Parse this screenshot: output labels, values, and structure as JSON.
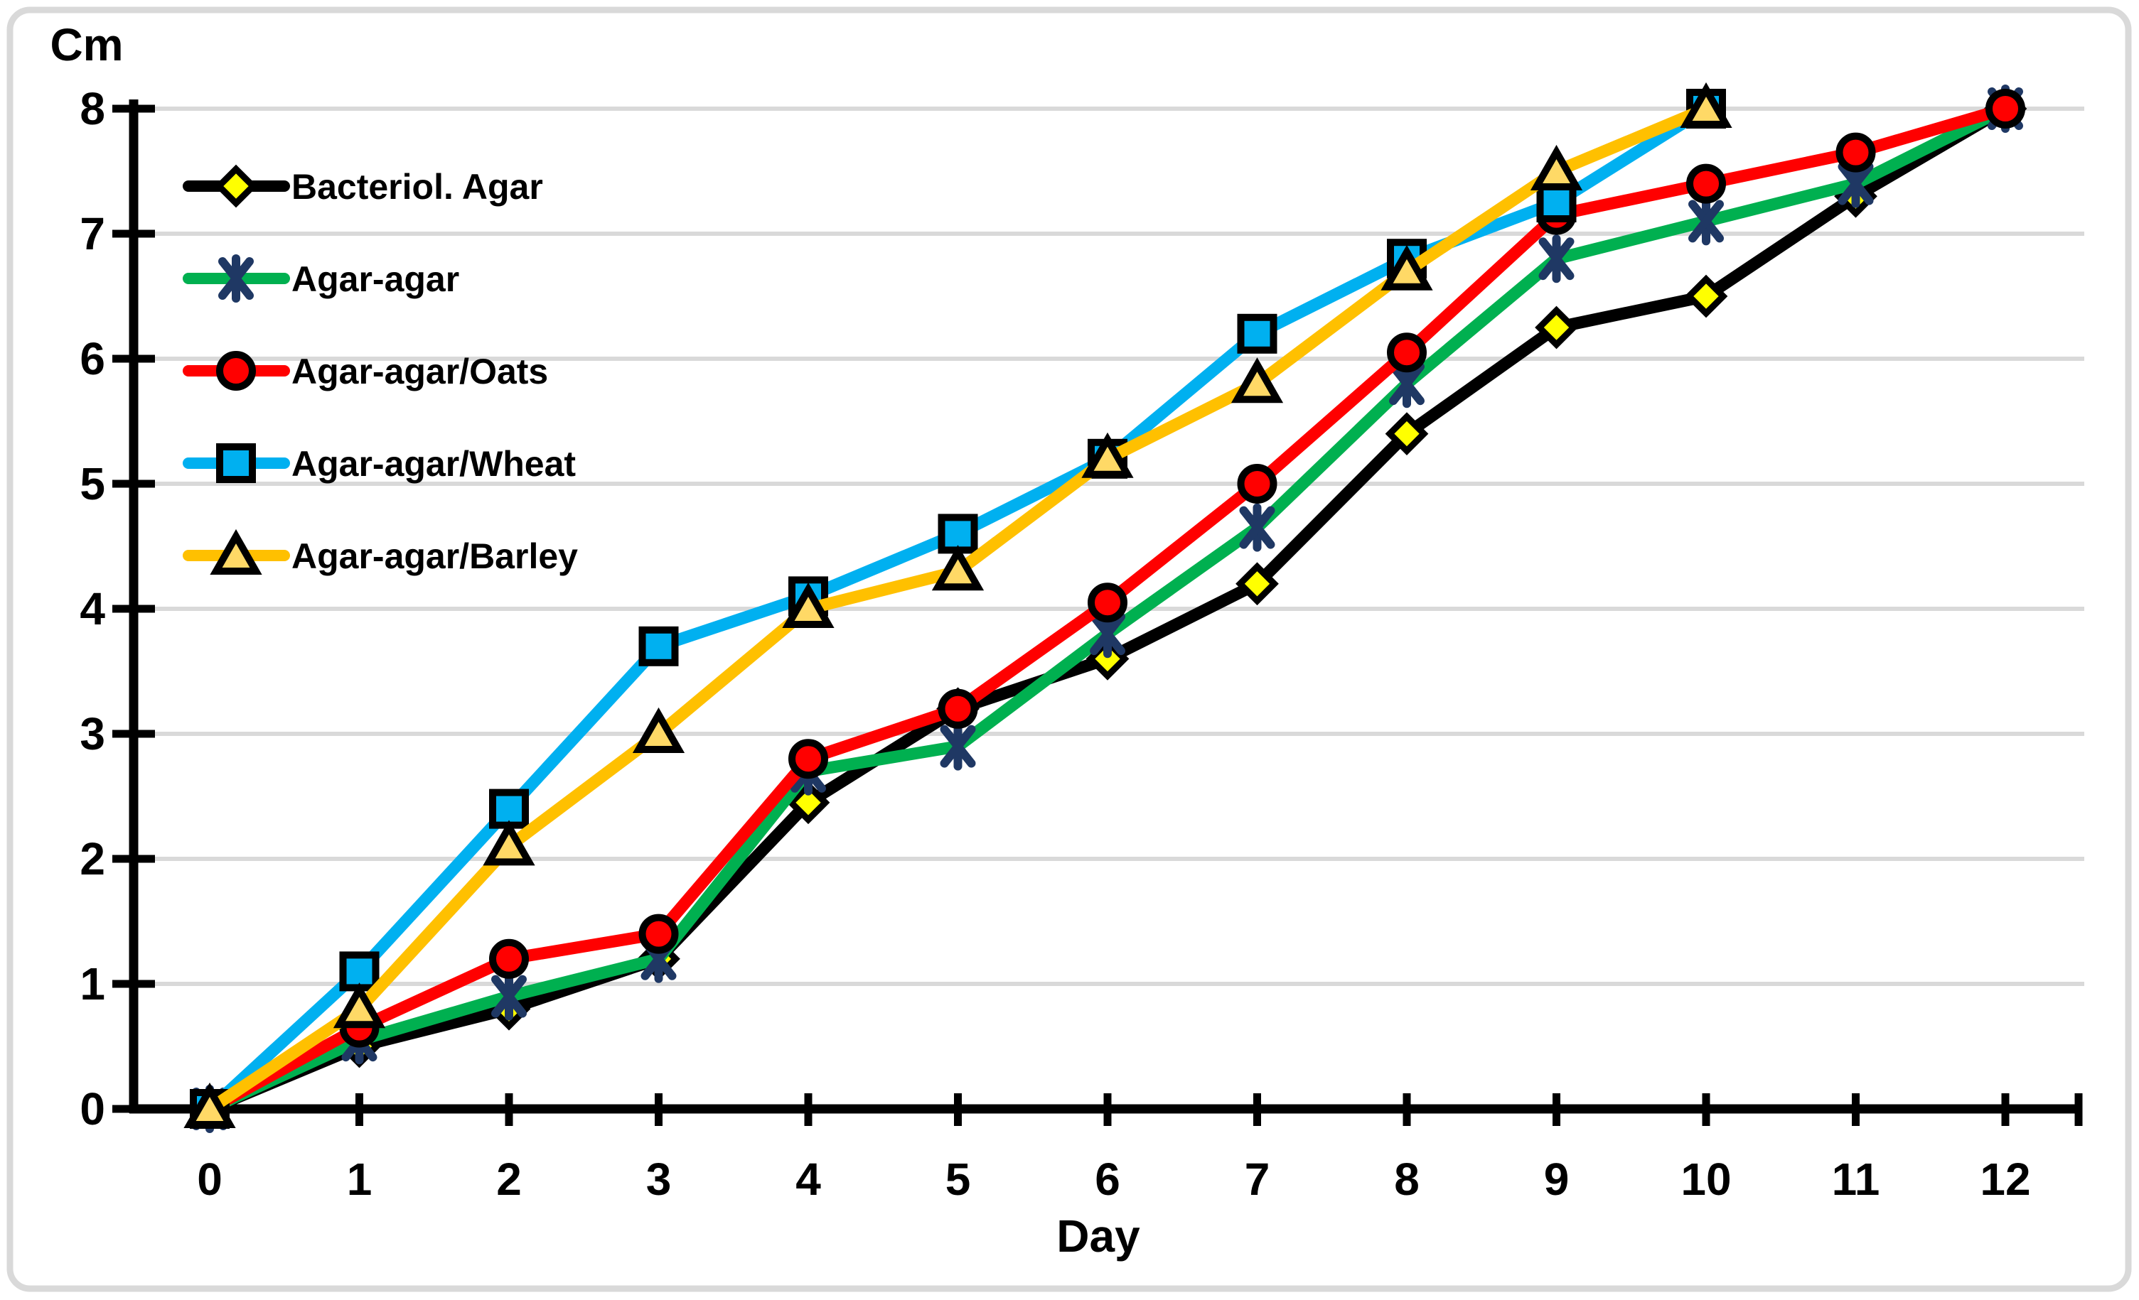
{
  "figure": {
    "background": "#FFFFFF",
    "border_color": "#D9D9D9"
  },
  "chart_data": {
    "type": "line",
    "title": "",
    "xlabel": "Day",
    "ylabel": "Cm",
    "x": [
      0,
      1,
      2,
      3,
      4,
      5,
      6,
      7,
      8,
      9,
      10,
      11,
      12
    ],
    "x_tick_labels": [
      "0",
      "1",
      "2",
      "3",
      "4",
      "5",
      "6",
      "7",
      "8",
      "9",
      "10",
      "11",
      "12"
    ],
    "y_tick_labels": [
      "0",
      "1",
      "2",
      "3",
      "4",
      "5",
      "6",
      "7",
      "8"
    ],
    "xlim": [
      0,
      12
    ],
    "ylim": [
      0,
      8
    ],
    "grid": "horizontal-only",
    "gridline_color": "#D9D9D9",
    "legend_position": "top-left-inside",
    "series": [
      {
        "name": "Bacteriol. Agar",
        "line_color": "#000000",
        "marker": "diamond",
        "marker_fill": "#FFFF00",
        "marker_stroke": "#000000",
        "values": [
          0,
          0.5,
          0.8,
          1.2,
          2.45,
          3.2,
          3.6,
          4.2,
          5.4,
          6.25,
          6.5,
          7.3,
          8.0
        ]
      },
      {
        "name": "Agar-agar",
        "line_color": "#00B050",
        "marker": "asterisk",
        "marker_fill": "#1F3864",
        "marker_stroke": "#1F3864",
        "values": [
          0,
          0.55,
          0.9,
          1.2,
          2.7,
          2.9,
          3.8,
          4.65,
          5.8,
          6.8,
          7.1,
          7.4,
          8.0
        ]
      },
      {
        "name": "Agar-agar/Oats",
        "line_color": "#FF0000",
        "marker": "circle",
        "marker_fill": "#FF0000",
        "marker_stroke": "#000000",
        "values": [
          0,
          0.65,
          1.2,
          1.4,
          2.8,
          3.2,
          4.05,
          5.0,
          6.05,
          7.15,
          7.4,
          7.65,
          8.0
        ]
      },
      {
        "name": "Agar-agar/Wheat",
        "line_color": "#00B0F0",
        "marker": "square",
        "marker_fill": "#00B0F0",
        "marker_stroke": "#000000",
        "values": [
          0,
          1.1,
          2.4,
          3.7,
          4.1,
          4.6,
          5.2,
          6.2,
          6.8,
          7.25,
          8.0,
          null,
          null
        ]
      },
      {
        "name": "Agar-agar/Barley",
        "line_color": "#FFC000",
        "marker": "triangle",
        "marker_fill": "#FFD966",
        "marker_stroke": "#000000",
        "values": [
          0,
          0.8,
          2.1,
          3.0,
          4.0,
          4.3,
          5.2,
          5.8,
          6.7,
          7.5,
          8.0,
          null,
          null
        ]
      }
    ]
  }
}
